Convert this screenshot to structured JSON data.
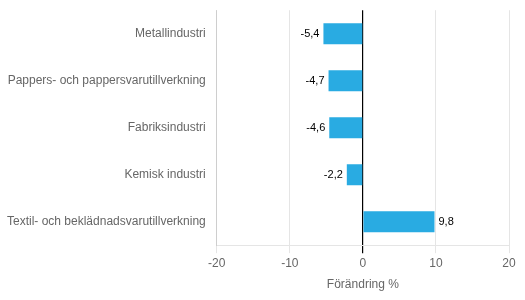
{
  "chart_data": {
    "type": "bar",
    "orientation": "horizontal",
    "categories": [
      "Metallindustri",
      "Pappers- och pappersvarutillverkning",
      "Fabriksindustri",
      "Kemisk industri",
      "Textil- och beklädnadsvarutillverkning"
    ],
    "values": [
      -5.4,
      -4.7,
      -4.6,
      -2.2,
      9.8
    ],
    "value_labels": [
      "-5,4",
      "-4,7",
      "-4,6",
      "-2,2",
      "9,8"
    ],
    "data_labels": true,
    "color": "#29ABE2",
    "xlabel": "Förändring %",
    "xlim": [
      -20,
      20
    ],
    "xticks": [
      -20,
      -10,
      0,
      10,
      20
    ],
    "grid": true
  }
}
